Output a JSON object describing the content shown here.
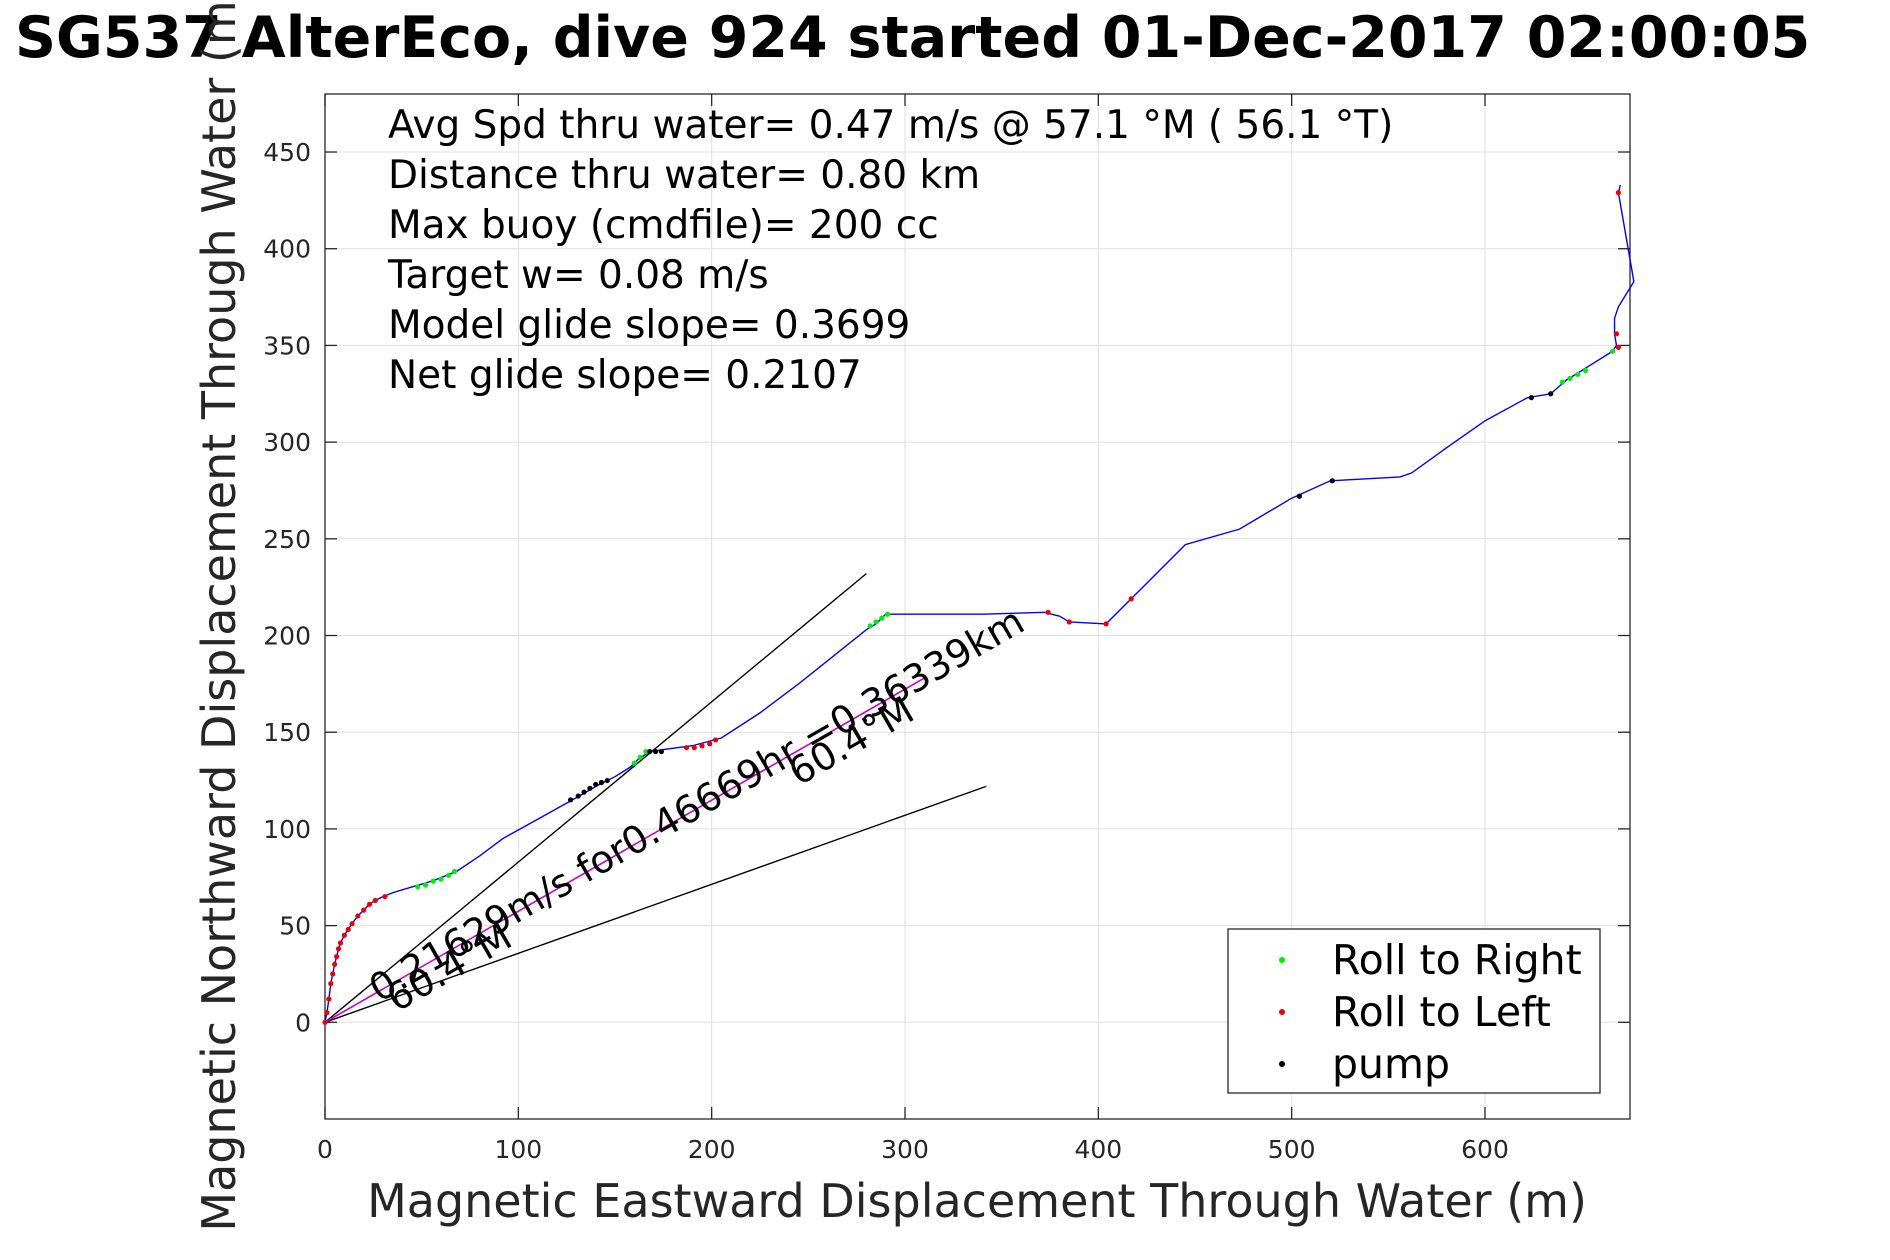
{
  "chart_data": {
    "type": "line",
    "title": "SG537 AlterEco, dive 924 started 01-Dec-2017 02:00:05",
    "xlabel": "Magnetic Eastward Displacement Through Water (m)",
    "ylabel": "Magnetic Northward Displacement Through Water (m)",
    "xlim": [
      0,
      675
    ],
    "ylim": [
      -50,
      480
    ],
    "xticks": [
      0,
      100,
      200,
      300,
      400,
      500,
      600
    ],
    "yticks": [
      0,
      50,
      100,
      150,
      200,
      250,
      300,
      350,
      400,
      450
    ],
    "grid": true,
    "legend_location": "bottom-right",
    "info_lines": [
      "Avg Spd thru water=  0.47 m/s @  57.1 °M ( 56.1 °T)",
      "Distance thru water=  0.80 km",
      "Max buoy (cmdfile)= 200 cc",
      "Target w= 0.08 m/s",
      "Model glide slope= 0.3699",
      "Net glide slope= 0.2107"
    ],
    "annotations": [
      {
        "text": "0.21629m/s for0.46669hr =0.36339km",
        "x": 28,
        "y": 10,
        "angle": 30
      },
      {
        "text": "60.4°M",
        "x": 37,
        "y": 5,
        "angle": 30
      },
      {
        "text": "60.4°M",
        "x": 245,
        "y": 122,
        "angle": 30
      }
    ],
    "track": {
      "name": "track",
      "color": "#0000ff",
      "x": [
        0,
        1,
        2,
        3,
        4,
        5,
        6,
        7,
        8,
        10,
        12,
        14,
        17,
        20,
        23,
        26,
        30,
        35,
        45,
        52,
        58,
        63,
        68,
        80,
        92,
        110,
        128,
        135,
        142,
        150,
        158,
        162,
        168,
        175,
        190,
        205,
        225,
        245,
        260,
        270,
        280,
        285,
        290,
        300,
        340,
        372,
        380,
        385,
        404,
        417,
        445,
        473,
        500,
        520,
        556,
        562,
        580,
        600,
        622,
        634,
        642,
        650,
        666,
        668,
        667,
        667,
        669,
        677,
        669,
        670
      ],
      "y": [
        0,
        5,
        12,
        20,
        25,
        30,
        34,
        38,
        41,
        45,
        48,
        51,
        55,
        58,
        61,
        63,
        65,
        67,
        70,
        72,
        74,
        76,
        78,
        86,
        95,
        105,
        115,
        119,
        123,
        127,
        132,
        136,
        140,
        141,
        143,
        147,
        160,
        175,
        187,
        195,
        203,
        206,
        211,
        211,
        211,
        212,
        210,
        207,
        206,
        219,
        247,
        255,
        271,
        280,
        282,
        284,
        297,
        311,
        323,
        325,
        332,
        337,
        347,
        350,
        356,
        364,
        370,
        383,
        429,
        433
      ]
    },
    "net_line": {
      "name": "net",
      "color": "#cc00cc",
      "x": [
        0,
        310
      ],
      "y": [
        0,
        178
      ]
    },
    "cone_lines": [
      {
        "x": [
          0,
          280
        ],
        "y": [
          0,
          232
        ]
      },
      {
        "x": [
          0,
          342
        ],
        "y": [
          0,
          122
        ]
      }
    ],
    "markers": [
      {
        "name": "Roll to Right",
        "color": "#00ee00",
        "x": [
          48,
          52,
          56,
          60,
          64,
          67,
          160,
          163,
          166,
          282,
          285,
          288,
          291,
          640,
          644,
          648,
          652,
          666
        ],
        "y": [
          70,
          71,
          73,
          74,
          76,
          78,
          134,
          137,
          140,
          205,
          207,
          209,
          211,
          331,
          333,
          335,
          337,
          347
        ]
      },
      {
        "name": "Roll to Left",
        "color": "#ee0000",
        "x": [
          0,
          1,
          2,
          3,
          4,
          5,
          6,
          7,
          8,
          10,
          12,
          14,
          17,
          20,
          23,
          26,
          31,
          187,
          191,
          195,
          199,
          202,
          374,
          385,
          404,
          417,
          668,
          669,
          669
        ],
        "y": [
          0,
          5,
          12,
          20,
          25,
          30,
          34,
          38,
          41,
          45,
          48,
          51,
          55,
          58,
          61,
          63,
          65,
          142,
          142,
          143,
          144,
          146,
          212,
          207,
          206,
          219,
          356,
          349,
          429
        ]
      },
      {
        "name": "pump",
        "color": "#000000",
        "x": [
          127,
          131,
          134,
          137,
          140,
          143,
          146,
          168,
          171,
          174,
          504,
          521,
          624,
          634
        ],
        "y": [
          115,
          117,
          119,
          121,
          123,
          124,
          125,
          140,
          140,
          140,
          272,
          280,
          323,
          325
        ]
      }
    ]
  }
}
